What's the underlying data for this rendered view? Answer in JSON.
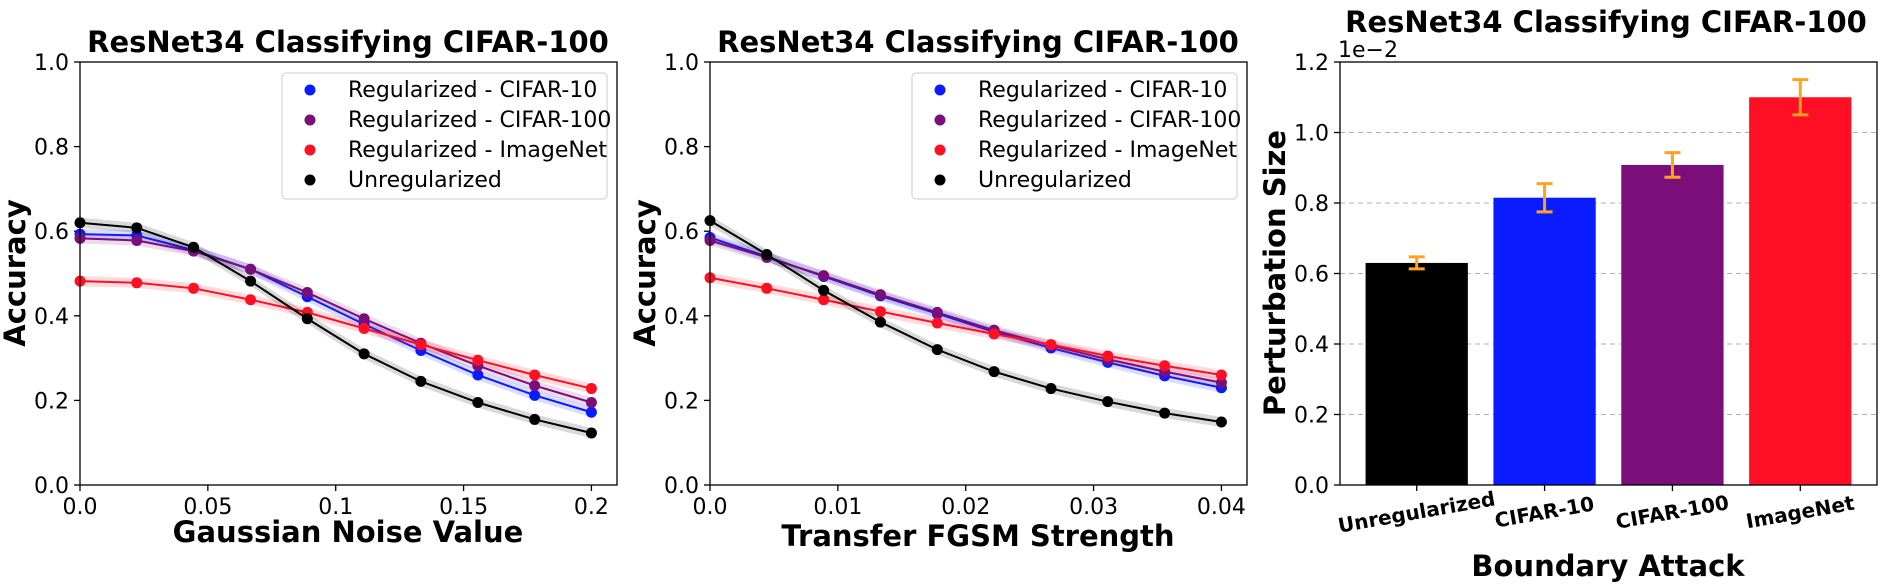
{
  "chart_data": [
    {
      "type": "line",
      "title": "ResNet34 Classifying CIFAR-100",
      "xlabel": "Gaussian Noise Value",
      "ylabel": "Accuracy",
      "xlim": [
        0,
        0.21
      ],
      "ylim": [
        0,
        1.0
      ],
      "xticks": [
        0,
        0.05,
        0.1,
        0.15,
        0.2
      ],
      "xtick_labels": [
        "0.0",
        "0.05",
        "0.1",
        "0.15",
        "0.2"
      ],
      "yticks": [
        0,
        0.2,
        0.4,
        0.6,
        0.8,
        1.0
      ],
      "ytick_labels": [
        "0.0",
        "0.2",
        "0.4",
        "0.6",
        "0.8",
        "1.0"
      ],
      "legend": "top-right",
      "x": [
        0,
        0.0222,
        0.0444,
        0.0667,
        0.0889,
        0.1111,
        0.1333,
        0.1556,
        0.1778,
        0.2
      ],
      "series": [
        {
          "name": "Regularized - CIFAR-10",
          "color": "#0a1cff",
          "values": [
            0.593,
            0.59,
            0.555,
            0.51,
            0.445,
            0.38,
            0.318,
            0.26,
            0.212,
            0.172
          ]
        },
        {
          "name": "Regularized - CIFAR-100",
          "color": "#7a0f7a",
          "values": [
            0.583,
            0.578,
            0.553,
            0.51,
            0.455,
            0.393,
            0.335,
            0.282,
            0.235,
            0.195
          ]
        },
        {
          "name": "Regularized - ImageNet",
          "color": "#ff0f24",
          "values": [
            0.482,
            0.478,
            0.465,
            0.438,
            0.408,
            0.37,
            0.332,
            0.295,
            0.26,
            0.228
          ]
        },
        {
          "name": "Unregularized",
          "color": "#000000",
          "values": [
            0.62,
            0.608,
            0.562,
            0.482,
            0.393,
            0.31,
            0.245,
            0.195,
            0.155,
            0.123
          ]
        }
      ]
    },
    {
      "type": "line",
      "title": "ResNet34 Classifying CIFAR-100",
      "xlabel": "Transfer FGSM Strength",
      "ylabel": "Accuracy",
      "xlim": [
        0,
        0.042
      ],
      "ylim": [
        0,
        1.0
      ],
      "xticks": [
        0,
        0.01,
        0.02,
        0.03,
        0.04
      ],
      "xtick_labels": [
        "0.0",
        "0.01",
        "0.02",
        "0.03",
        "0.04"
      ],
      "yticks": [
        0,
        0.2,
        0.4,
        0.6,
        0.8,
        1.0
      ],
      "ytick_labels": [
        "0.0",
        "0.2",
        "0.4",
        "0.6",
        "0.8",
        "1.0"
      ],
      "legend": "top-right",
      "x": [
        0,
        0.00444,
        0.00889,
        0.01333,
        0.01778,
        0.02222,
        0.02667,
        0.03111,
        0.03556,
        0.04
      ],
      "series": [
        {
          "name": "Regularized - CIFAR-10",
          "color": "#0a1cff",
          "values": [
            0.585,
            0.54,
            0.493,
            0.447,
            0.405,
            0.362,
            0.324,
            0.29,
            0.258,
            0.23
          ]
        },
        {
          "name": "Regularized - CIFAR-100",
          "color": "#7a0f7a",
          "values": [
            0.578,
            0.538,
            0.495,
            0.45,
            0.408,
            0.366,
            0.33,
            0.297,
            0.268,
            0.242
          ]
        },
        {
          "name": "Regularized - ImageNet",
          "color": "#ff0f24",
          "values": [
            0.49,
            0.465,
            0.438,
            0.41,
            0.383,
            0.357,
            0.332,
            0.305,
            0.282,
            0.26
          ]
        },
        {
          "name": "Unregularized",
          "color": "#000000",
          "values": [
            0.625,
            0.545,
            0.46,
            0.385,
            0.32,
            0.268,
            0.228,
            0.197,
            0.17,
            0.149
          ]
        }
      ]
    },
    {
      "type": "bar",
      "title": "ResNet34 Classifying CIFAR-100",
      "xlabel": "Boundary Attack",
      "ylabel": "Perturbation Size",
      "scale_label": "1e−2",
      "ylim": [
        0,
        1.2
      ],
      "yticks": [
        0,
        0.2,
        0.4,
        0.6,
        0.8,
        1.0,
        1.2
      ],
      "ytick_labels": [
        "0.0",
        "0.2",
        "0.4",
        "0.6",
        "0.8",
        "1.0",
        "1.2"
      ],
      "grid": "y-dashed",
      "categories": [
        "Unregularized",
        "CIFAR-10",
        "CIFAR-100",
        "ImageNet"
      ],
      "values": [
        0.63,
        0.815,
        0.908,
        1.1
      ],
      "errors": [
        0.017,
        0.04,
        0.035,
        0.05
      ],
      "colors": [
        "#000000",
        "#0a1cff",
        "#7a0f7a",
        "#ff0f24"
      ],
      "error_color": "#ffa21f"
    }
  ]
}
